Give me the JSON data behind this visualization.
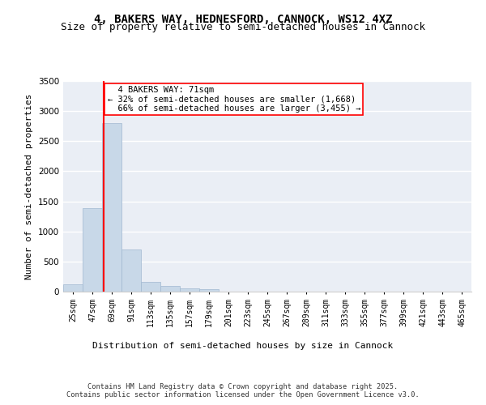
{
  "title": "4, BAKERS WAY, HEDNESFORD, CANNOCK, WS12 4XZ",
  "subtitle": "Size of property relative to semi-detached houses in Cannock",
  "xlabel": "Distribution of semi-detached houses by size in Cannock",
  "ylabel": "Number of semi-detached properties",
  "bar_color": "#c8d8e8",
  "bar_edgecolor": "#a0b8d0",
  "annotation_line_color": "red",
  "property_size": 71,
  "property_label": "4 BAKERS WAY: 71sqm",
  "pct_smaller": 32,
  "pct_larger": 66,
  "count_smaller": 1668,
  "count_larger": 3455,
  "bin_labels": [
    "25sqm",
    "47sqm",
    "69sqm",
    "91sqm",
    "113sqm",
    "135sqm",
    "157sqm",
    "179sqm",
    "201sqm",
    "223sqm",
    "245sqm",
    "267sqm",
    "289sqm",
    "311sqm",
    "333sqm",
    "355sqm",
    "377sqm",
    "399sqm",
    "421sqm",
    "443sqm",
    "465sqm"
  ],
  "bin_values": [
    120,
    1380,
    2800,
    700,
    155,
    90,
    55,
    35,
    0,
    0,
    0,
    0,
    0,
    0,
    0,
    0,
    0,
    0,
    0,
    0,
    0
  ],
  "bin_edges": [
    25,
    47,
    69,
    91,
    113,
    135,
    157,
    179,
    201,
    223,
    245,
    267,
    289,
    311,
    333,
    355,
    377,
    399,
    421,
    443,
    465
  ],
  "bin_width": 22,
  "ylim": [
    0,
    3500
  ],
  "background_color": "#eaeef5",
  "footer_line1": "Contains HM Land Registry data © Crown copyright and database right 2025.",
  "footer_line2": "Contains public sector information licensed under the Open Government Licence v3.0.",
  "title_fontsize": 10,
  "subtitle_fontsize": 9,
  "axis_label_fontsize": 8,
  "tick_fontsize": 7,
  "annotation_fontsize": 7.5
}
